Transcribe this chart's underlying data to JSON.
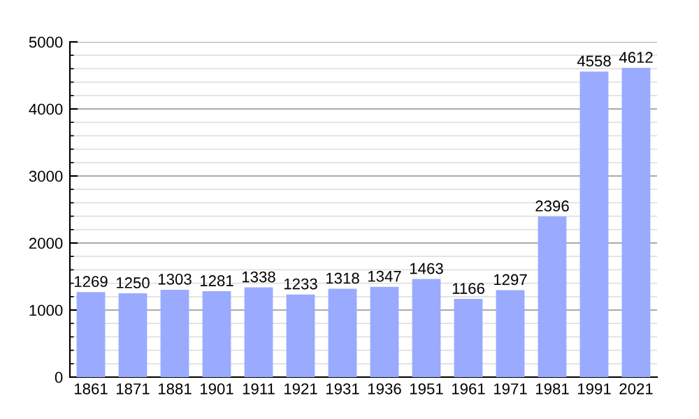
{
  "chart_data": {
    "type": "bar",
    "categories": [
      "1861",
      "1871",
      "1881",
      "1901",
      "1911",
      "1921",
      "1931",
      "1936",
      "1951",
      "1961",
      "1971",
      "1981",
      "1991",
      "2021"
    ],
    "values": [
      1269,
      1250,
      1303,
      1281,
      1338,
      1233,
      1318,
      1347,
      1463,
      1166,
      1297,
      2396,
      4558,
      4612
    ],
    "color": "#99aaff",
    "ylim": [
      0,
      5000
    ],
    "yticks": [
      0,
      1000,
      2000,
      3000,
      4000,
      5000
    ],
    "grid": "y",
    "data_labels": true
  }
}
